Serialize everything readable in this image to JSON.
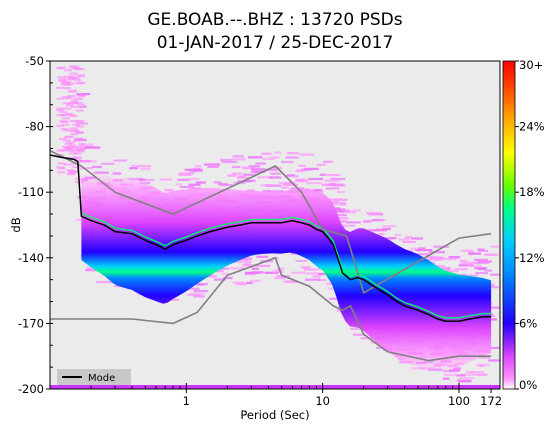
{
  "chart_data": {
    "type": "heatmap",
    "title_line1": "GE.BOAB.--.BHZ : 13720 PSDs",
    "title_line2": "01-JAN-2017 / 25-DEC-2017",
    "xlabel": "Period (Sec)",
    "ylabel": "dB",
    "x_scale": "log",
    "xlim": [
      0.1,
      200
    ],
    "ylim": [
      -200,
      -50
    ],
    "x_ticks": [
      {
        "value": 1,
        "label": "1"
      },
      {
        "value": 10,
        "label": "10"
      },
      {
        "value": 100,
        "label": "100"
      },
      {
        "value": 172,
        "label": "172"
      }
    ],
    "y_ticks": [
      {
        "value": -50,
        "label": "-50"
      },
      {
        "value": -80,
        "label": "-80"
      },
      {
        "value": -110,
        "label": "-110"
      },
      {
        "value": -140,
        "label": "-140"
      },
      {
        "value": -170,
        "label": "-170"
      },
      {
        "value": -200,
        "label": "-200"
      }
    ],
    "colorbar": {
      "min": 0,
      "max": 30,
      "ticks": [
        {
          "value": 0,
          "label": "0%"
        },
        {
          "value": 6,
          "label": "6%"
        },
        {
          "value": 12,
          "label": "12%"
        },
        {
          "value": 18,
          "label": "18%"
        },
        {
          "value": 24,
          "label": "24%"
        },
        {
          "value": 30,
          "label": "30+"
        }
      ]
    },
    "legend": {
      "entries": [
        "Mode"
      ],
      "placement": "bottom-left"
    },
    "mode": {
      "x": [
        0.1,
        0.12,
        0.15,
        0.16,
        0.17,
        0.2,
        0.25,
        0.3,
        0.4,
        0.5,
        0.6,
        0.7,
        0.8,
        1.0,
        1.2,
        1.5,
        2,
        2.5,
        3,
        4,
        5,
        6,
        7,
        8,
        9,
        10,
        11,
        12,
        14,
        16,
        18,
        20,
        25,
        30,
        35,
        40,
        50,
        60,
        70,
        80,
        100,
        120,
        150,
        172
      ],
      "y": [
        -93,
        -94,
        -95,
        -96,
        -121,
        -123,
        -125,
        -128,
        -129,
        -132,
        -134,
        -136,
        -134,
        -132,
        -130,
        -128,
        -126,
        -125,
        -124,
        -124,
        -124,
        -123,
        -124,
        -125,
        -127,
        -128,
        -131,
        -134,
        -147,
        -150,
        -149,
        -150,
        -154,
        -157,
        -160,
        -162,
        -164,
        -166,
        -168,
        -169,
        -169,
        -168,
        -167,
        -167
      ]
    },
    "nlnm": {
      "x": [
        0.1,
        0.2,
        0.4,
        0.8,
        1.2,
        2,
        4.5,
        5,
        8,
        12,
        14,
        16,
        20,
        30,
        60,
        100,
        172
      ],
      "y": [
        -168,
        -168,
        -168,
        -170,
        -165,
        -148,
        -140,
        -148,
        -153,
        -162,
        -164,
        -162,
        -175,
        -183,
        -187,
        -185,
        -185
      ]
    },
    "nhnm": {
      "x": [
        0.1,
        0.17,
        0.3,
        0.8,
        4.5,
        7,
        10,
        15,
        20,
        100,
        172
      ],
      "y": [
        -91,
        -98,
        -110,
        -120,
        -98,
        -110,
        -127,
        -130,
        -156,
        -131,
        -129
      ]
    },
    "colors": {
      "background": "#ebebeb",
      "mode_line": "#000000",
      "noise_models": "#808080"
    }
  }
}
